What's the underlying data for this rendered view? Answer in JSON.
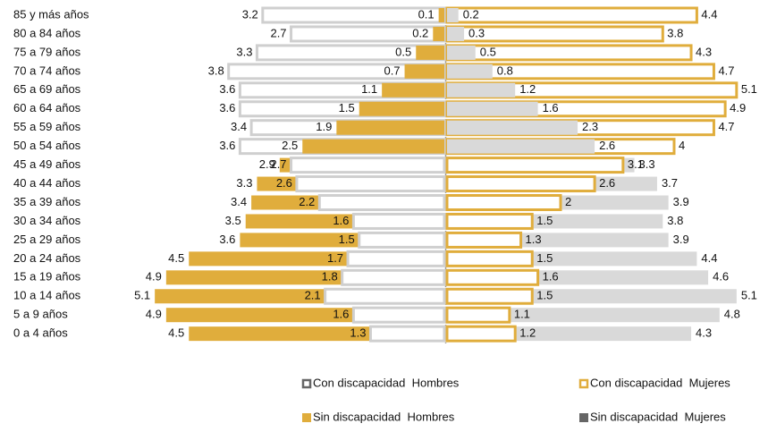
{
  "chart_data": {
    "type": "pyramid",
    "categories": [
      "85 y más años",
      "80 a 84 años",
      "75 a 79 años",
      "70 a 74 años",
      "65 a 69 años",
      "60 a 64 años",
      "55 a 59 años",
      "50 a 54 años",
      "45 a 49 años",
      "40 a 44 años",
      "35 a 39 años",
      "30 a 34 años",
      "25 a 29 años",
      "20 a 24 años",
      "15 a 19 años",
      "10 a 14 años",
      "5 a 9 años",
      "0 a 4 años"
    ],
    "series": [
      {
        "name": "Con discapacidad  Hombres",
        "color": "#cfcfcf",
        "side": "left",
        "style": "outline",
        "values": [
          3.2,
          2.7,
          3.3,
          3.8,
          3.6,
          3.6,
          3.4,
          3.6,
          2.7,
          2.6,
          2.2,
          1.6,
          1.5,
          1.7,
          1.8,
          2.1,
          1.6,
          1.3
        ]
      },
      {
        "name": "Sin discapacidad  Hombres",
        "color": "#e0ad3c",
        "side": "left",
        "style": "fill",
        "values": [
          0.1,
          0.2,
          0.5,
          0.7,
          1.1,
          1.5,
          1.9,
          2.5,
          2.9,
          3.3,
          3.4,
          3.5,
          3.6,
          4.5,
          4.9,
          5.1,
          4.9,
          4.5
        ]
      },
      {
        "name": "Con discapacidad  Mujeres",
        "color": "#e0ad3c",
        "side": "right",
        "style": "outline",
        "values": [
          4.4,
          3.8,
          4.3,
          4.7,
          5.1,
          4.9,
          4.7,
          4.0,
          3.1,
          2.6,
          2.0,
          1.5,
          1.3,
          1.5,
          1.6,
          1.5,
          1.1,
          1.2
        ]
      },
      {
        "name": "Sin discapacidad  Mujeres",
        "color": "#d9d9d9",
        "side": "right",
        "style": "fill",
        "values": [
          0.2,
          0.3,
          0.5,
          0.8,
          1.2,
          1.6,
          2.3,
          2.6,
          3.3,
          3.7,
          3.9,
          3.8,
          3.9,
          4.4,
          4.6,
          5.1,
          4.8,
          4.3
        ]
      }
    ]
  }
}
